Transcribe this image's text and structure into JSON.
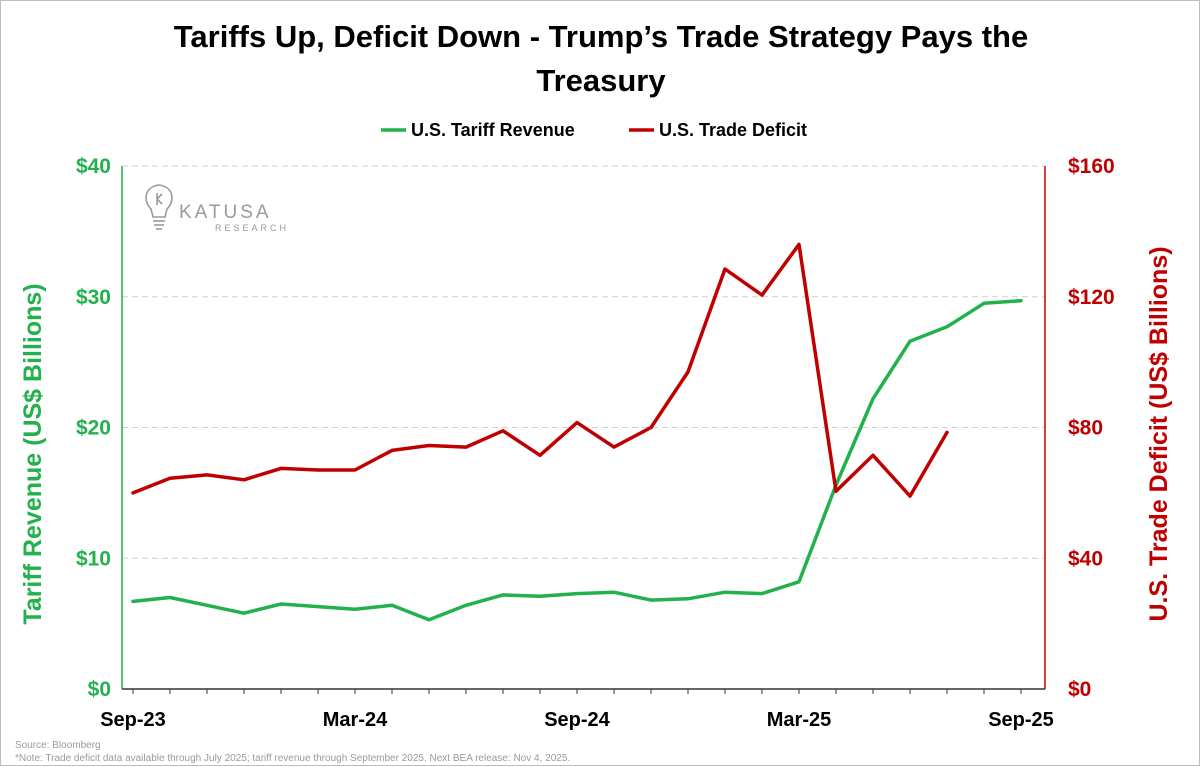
{
  "title_line1": "Tariffs Up, Deficit Down - Trump’s Trade Strategy Pays the",
  "title_line2": "Treasury",
  "colors": {
    "tariff": "#22b14c",
    "deficit": "#c00000",
    "grid": "#cfcfcf"
  },
  "logo": {
    "icon": "lightbulb-icon",
    "name": "KATUSA",
    "sub": "RESEARCH"
  },
  "source": "Source: Bloomberg",
  "note": "*Note: Trade deficit data available through July 2025; tariff revenue through September 2025. Next BEA release: Nov 4, 2025.",
  "chart_data": {
    "type": "line",
    "title": "Tariffs Up, Deficit Down - Trump’s Trade Strategy Pays the Treasury",
    "x_tick_labels": [
      "Sep-23",
      "Mar-24",
      "Sep-24",
      "Mar-25",
      "Sep-25"
    ],
    "x": [
      "Sep-23",
      "Oct-23",
      "Nov-23",
      "Dec-23",
      "Jan-24",
      "Feb-24",
      "Mar-24",
      "Apr-24",
      "May-24",
      "Jun-24",
      "Jul-24",
      "Aug-24",
      "Sep-24",
      "Oct-24",
      "Nov-24",
      "Dec-24",
      "Jan-25",
      "Feb-25",
      "Mar-25",
      "Apr-25",
      "May-25",
      "Jun-25",
      "Jul-25",
      "Aug-25",
      "Sep-25"
    ],
    "y_left": {
      "label": "Tariff Revenue (US$ Billions)",
      "range": [
        0,
        40
      ],
      "ticks": [
        0,
        10,
        20,
        30,
        40
      ],
      "tick_labels": [
        "$0",
        "$10",
        "$20",
        "$30",
        "$40"
      ]
    },
    "y_right": {
      "label": "U.S. Trade Deficit (US$ Billions)",
      "range": [
        0,
        160
      ],
      "ticks": [
        0,
        40,
        80,
        120,
        160
      ],
      "tick_labels": [
        "$0",
        "$40",
        "$80",
        "$120",
        "$160"
      ]
    },
    "grid": true,
    "legend_position": "top",
    "series": [
      {
        "name": "U.S. Tariff Revenue",
        "axis": "left",
        "values": [
          6.7,
          7.0,
          6.4,
          5.8,
          6.5,
          6.3,
          6.1,
          6.4,
          5.3,
          6.4,
          7.2,
          7.1,
          7.3,
          7.4,
          6.8,
          6.9,
          7.4,
          7.3,
          8.2,
          15.6,
          22.2,
          26.6,
          27.7,
          29.5,
          29.7
        ]
      },
      {
        "name": "U.S. Trade Deficit",
        "axis": "right",
        "values": [
          60,
          64.5,
          65.5,
          64,
          67.5,
          67,
          67,
          73,
          74.5,
          74,
          79,
          71.5,
          81.5,
          74,
          80,
          97,
          128.5,
          120.5,
          136,
          60.5,
          71.5,
          59,
          78.5,
          null,
          null
        ]
      }
    ]
  }
}
